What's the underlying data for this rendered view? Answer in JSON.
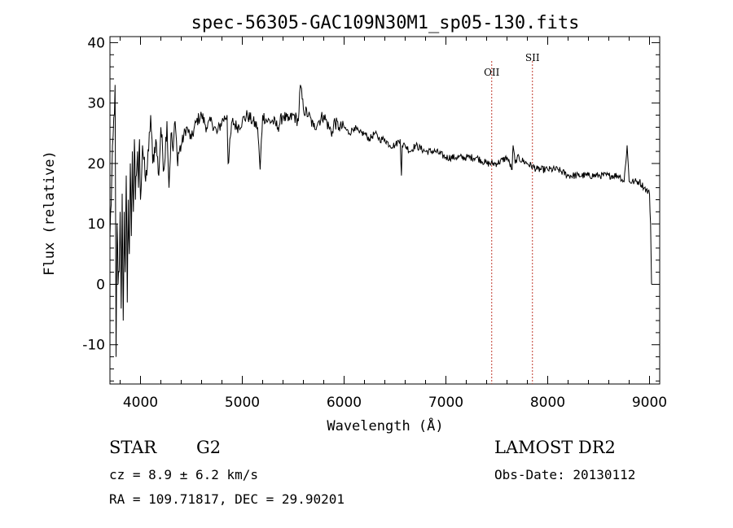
{
  "chart_data": {
    "type": "line",
    "title": "spec-56305-GAC109N30M1_sp05-130.fits",
    "xlabel": "Wavelength (Å)",
    "ylabel": "Flux (relative)",
    "xlim": [
      3700,
      9100
    ],
    "ylim": [
      -16.5,
      41
    ],
    "x_ticks": [
      4000,
      5000,
      6000,
      7000,
      8000,
      9000
    ],
    "y_ticks": [
      -10,
      0,
      10,
      20,
      30,
      40
    ],
    "series": [
      {
        "name": "flux",
        "x": [
          3700,
          3750,
          3760,
          3770,
          3780,
          3790,
          3800,
          3810,
          3820,
          3830,
          3840,
          3850,
          3860,
          3870,
          3880,
          3890,
          3900,
          3910,
          3920,
          3930,
          3940,
          3950,
          3960,
          3970,
          3980,
          3990,
          4000,
          4020,
          4050,
          4080,
          4100,
          4120,
          4150,
          4180,
          4200,
          4230,
          4260,
          4280,
          4300,
          4320,
          4340,
          4360,
          4400,
          4450,
          4500,
          4550,
          4600,
          4650,
          4700,
          4750,
          4800,
          4850,
          4861,
          4900,
          4950,
          5000,
          5050,
          5100,
          5150,
          5175,
          5200,
          5250,
          5300,
          5350,
          5400,
          5450,
          5500,
          5550,
          5570,
          5600,
          5650,
          5700,
          5750,
          5800,
          5850,
          5890,
          5900,
          5950,
          6000,
          6050,
          6100,
          6150,
          6200,
          6250,
          6300,
          6350,
          6400,
          6450,
          6500,
          6550,
          6563,
          6570,
          6600,
          6650,
          6700,
          6800,
          6900,
          7000,
          7100,
          7200,
          7300,
          7400,
          7500,
          7600,
          7650,
          7660,
          7680,
          7700,
          7800,
          7900,
          8000,
          8100,
          8200,
          8300,
          8400,
          8500,
          8600,
          8700,
          8750,
          8780,
          8800,
          8850,
          8900,
          8950,
          9000,
          9010,
          9020
        ],
        "values": [
          8,
          33,
          -12,
          10,
          0,
          2,
          12,
          -4,
          15,
          -6,
          12,
          2,
          18,
          -3,
          14,
          5,
          20,
          8,
          22,
          12,
          24,
          14,
          18,
          22,
          16,
          24,
          14,
          23,
          17,
          22,
          28,
          20,
          24,
          18,
          26,
          19,
          27,
          16,
          25,
          22,
          27,
          21,
          23,
          26,
          24,
          27,
          28,
          26,
          27,
          25,
          27,
          28,
          20,
          27,
          26,
          27,
          28,
          27,
          26,
          19,
          28,
          27,
          27,
          26,
          28,
          27,
          28,
          27,
          33,
          29,
          28,
          26,
          27,
          28,
          26,
          25,
          27,
          26,
          26,
          25,
          26,
          25,
          25,
          24,
          25,
          24,
          24,
          23,
          23,
          24,
          18,
          23,
          23,
          22,
          23,
          22,
          22,
          21,
          21,
          21,
          21,
          20,
          20,
          21,
          19,
          23,
          20,
          21,
          20,
          19,
          19,
          19,
          18,
          18,
          18,
          18,
          18,
          18,
          17,
          23,
          17,
          17,
          17,
          16,
          15,
          10,
          0
        ]
      }
    ],
    "reference_lines": [
      {
        "label": "OII",
        "x": 7450,
        "color": "#c0392b"
      },
      {
        "label": "SII",
        "x": 7850,
        "color": "#c0392b"
      }
    ]
  },
  "info": {
    "object_class": "STAR",
    "subclass": "G2",
    "cz": "cz = 8.9 ± 6.2 km/s",
    "coords": "RA = 109.71817, DEC =  29.90201",
    "survey": "LAMOST DR2",
    "obs_date": "Obs-Date: 20130112"
  }
}
